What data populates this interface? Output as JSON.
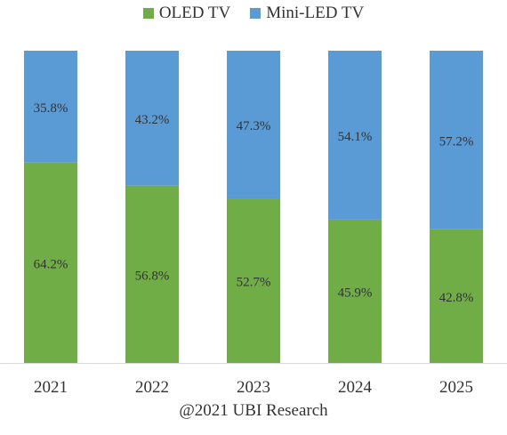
{
  "chart_data": {
    "type": "bar",
    "stacked": true,
    "percent_stacked": true,
    "categories": [
      "2021",
      "2022",
      "2023",
      "2024",
      "2025"
    ],
    "series": [
      {
        "name": "OLED TV",
        "values": [
          64.2,
          56.8,
          52.7,
          45.9,
          42.8
        ],
        "color": "#70AD47"
      },
      {
        "name": "Mini-LED TV",
        "values": [
          35.8,
          43.2,
          47.3,
          54.1,
          57.2
        ],
        "color": "#5B9BD5"
      }
    ],
    "data_labels": [
      "64.2%",
      "56.8%",
      "52.7%",
      "45.9%",
      "42.8%",
      "35.8%",
      "43.2%",
      "47.3%",
      "54.1%",
      "57.2%"
    ],
    "ylim": [
      0,
      100
    ],
    "legend_position": "top",
    "grid": false
  },
  "credit": "@2021 UBI Research"
}
